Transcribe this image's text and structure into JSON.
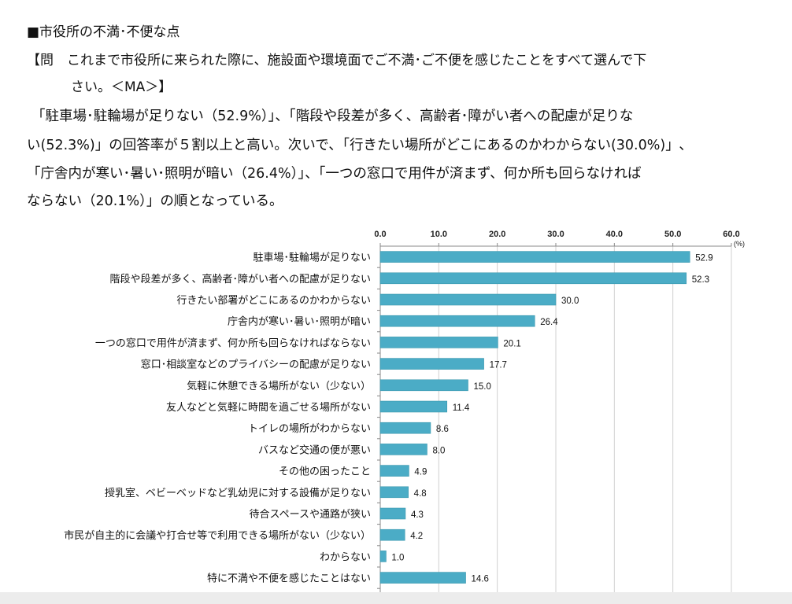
{
  "heading": "■市役所の不満･不便な点",
  "question": {
    "line1": "【問　これまで市役所に来られた際に、施設面や環境面でご不満･ご不便を感じたことをすべて選んで下",
    "line2": "さい。＜MA＞】"
  },
  "summary": [
    "「駐車場･駐輪場が足りない（52.9%）」、「階段や段差が多く、高齢者･障がい者への配慮が足りな",
    "い(52.3%)」の回答率が５割以上と高い。次いで､「行きたい場所がどこにあるのかわからない(30.0%)」､",
    "「庁舎内が寒い･暑い･照明が暗い（26.4%）」、「一つの窓口で用件が済まず、何か所も回らなければ",
    "ならない（20.1%）」の順となっている。"
  ],
  "chart_data": {
    "type": "bar",
    "orientation": "horizontal",
    "unit_label": "(%)",
    "xlim": [
      0,
      60
    ],
    "ticks": [
      "0.0",
      "10.0",
      "20.0",
      "30.0",
      "40.0",
      "50.0",
      "60.0"
    ],
    "grid": true,
    "bar_color": "#4bacc6",
    "categories": [
      "駐車場･駐輪場が足りない",
      "階段や段差が多く、高齢者･障がい者への配慮が足りない",
      "行きたい部署がどこにあるのかわからない",
      "庁舎内が寒い･暑い･照明が暗い",
      "一つの窓口で用件が済まず、何か所も回らなければならない",
      "窓口･相談室などのプライバシーの配慮が足りない",
      "気軽に休憩できる場所がない（少ない）",
      "友人などと気軽に時間を過ごせる場所がない",
      "トイレの場所がわからない",
      "バスなど交通の便が悪い",
      "その他の困ったこと",
      "授乳室、ベビーベッドなど乳幼児に対する設備が足りない",
      "待合スペースや通路が狭い",
      "市民が自主的に会議や打合せ等で利用できる場所がない（少ない）",
      "わからない",
      "特に不満や不便を感じたことはない"
    ],
    "values": [
      52.9,
      52.3,
      30.0,
      26.4,
      20.1,
      17.7,
      15.0,
      11.4,
      8.6,
      8.0,
      4.9,
      4.8,
      4.3,
      4.2,
      1.0,
      14.6
    ],
    "value_labels": [
      "52.9",
      "52.3",
      "30.0",
      "26.4",
      "20.1",
      "17.7",
      "15.0",
      "11.4",
      "8.6",
      "8.0",
      "4.9",
      "4.8",
      "4.3",
      "4.2",
      "1.0",
      "14.6"
    ]
  }
}
